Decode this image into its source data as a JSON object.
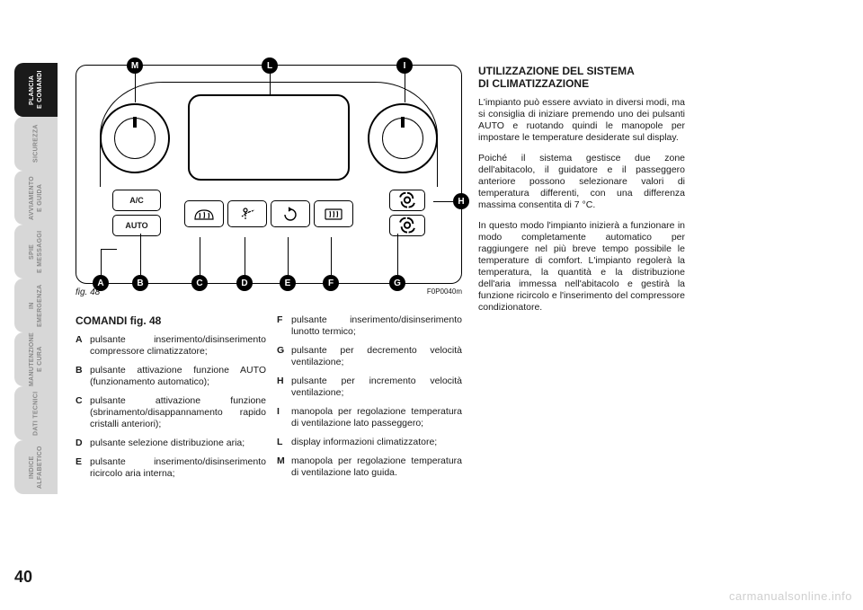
{
  "page_number": "40",
  "watermark": "carmanualsonline.info",
  "tabs": [
    {
      "label": "PLANCIA\nE COMANDI",
      "active": true
    },
    {
      "label": "SICUREZZA",
      "active": false
    },
    {
      "label": "AVVIAMENTO\nE GUIDA",
      "active": false
    },
    {
      "label": "SPIE\nE MESSAGGI",
      "active": false
    },
    {
      "label": "IN\nEMERGENZA",
      "active": false
    },
    {
      "label": "MANUTENZIONE\nE CURA",
      "active": false
    },
    {
      "label": "DATI TECNICI",
      "active": false
    },
    {
      "label": "INDICE\nALFABETICO",
      "active": false
    }
  ],
  "figure": {
    "caption_left": "fig. 48",
    "caption_right": "F0P0040m",
    "btn_ac": "A/C",
    "btn_auto": "AUTO",
    "callouts": {
      "A": "A",
      "B": "B",
      "C": "C",
      "D": "D",
      "E": "E",
      "F": "F",
      "G": "G",
      "H": "H",
      "I": "I",
      "L": "L",
      "M": "M"
    }
  },
  "col1": {
    "heading": "COMANDI fig. 48",
    "items": [
      {
        "k": "A",
        "v": "pulsante inserimento/disinserimento compressore climatizzatore;"
      },
      {
        "k": "B",
        "v": "pulsante attivazione funzione AUTO (funzionamento automatico);"
      },
      {
        "k": "C",
        "v": "pulsante attivazione funzione (sbrinamento/disappannamento rapido cristalli anteriori);"
      },
      {
        "k": "D",
        "v": "pulsante selezione distribuzione aria;"
      },
      {
        "k": "E",
        "v": "pulsante inserimento/disinserimento ricircolo aria interna;"
      }
    ]
  },
  "col2": {
    "items": [
      {
        "k": "F",
        "v": "pulsante inserimento/disinserimento lunotto termico;"
      },
      {
        "k": "G",
        "v": "pulsante per decremento velocità ventilazione;"
      },
      {
        "k": "H",
        "v": "pulsante per incremento velocità ventilazione;"
      },
      {
        "k": "I",
        "v": "manopola per regolazione temperatura di ventilazione lato passeggero;"
      },
      {
        "k": "L",
        "v": "display informazioni climatizzatore;"
      },
      {
        "k": "M",
        "v": "manopola per regolazione temperatura di ventilazione lato guida."
      }
    ]
  },
  "col3": {
    "heading1": "UTILIZZAZIONE DEL SISTEMA",
    "heading2": "DI CLIMATIZZAZIONE",
    "p1": "L'impianto può essere avviato in diversi modi, ma si consiglia di iniziare premendo uno dei pulsanti AUTO e ruotando quindi le manopole per impostare le temperature desiderate sul display.",
    "p2": "Poiché il sistema gestisce due zone dell'abitacolo, il guidatore e il passeggero anteriore possono selezionare valori di temperatura differenti, con una differenza massima consentita di 7 °C.",
    "p3": "In questo modo l'impianto inizierà a funzionare in modo completamente automatico per raggiungere nel più breve tempo possibile le temperature di comfort. L'impianto regolerà la temperatura, la quantità e la distribuzione dell'aria immessa nell'abitacolo e gestirà la funzione ricircolo e l'inserimento del compressore condizionatore."
  }
}
